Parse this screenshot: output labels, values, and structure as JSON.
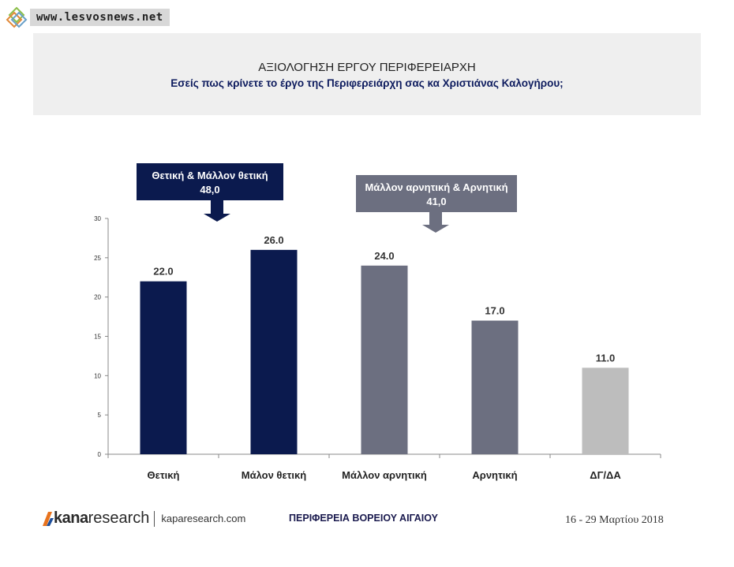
{
  "site": {
    "url": "www.lesvosnews.net"
  },
  "header": {
    "title": "ΑΞΙΟΛΟΓΗΣΗ ΕΡΓΟΥ ΠΕΡΙΦΕΡΕΙΑΡΧΗ",
    "subtitle": "Εσείς πως κρίνετε το έργο της Περιφερειάρχη σας κα Χριστιάνας Καλογήρου;"
  },
  "chart_data": {
    "type": "bar",
    "categories": [
      "Θετική",
      "Μάλον θετική",
      "Μάλλον αρνητική",
      "Αρνητική",
      "ΔΓ/ΔΑ"
    ],
    "values": [
      22.0,
      26.0,
      24.0,
      17.0,
      11.0
    ],
    "value_labels": [
      "22.0",
      "26.0",
      "24.0",
      "17.0",
      "11.0"
    ],
    "colors": [
      "#0b1a4e",
      "#0b1a4e",
      "#6c6f80",
      "#6c6f80",
      "#bdbdbd"
    ],
    "ylim": [
      0,
      30
    ],
    "yticks": [
      0,
      5,
      10,
      15,
      20,
      25,
      30
    ],
    "grid": false,
    "annotations": [
      {
        "line1": "Θετική & Μάλλον θετική",
        "line2": "48,0",
        "color": "#0b1a4e"
      },
      {
        "line1": "Μάλλον αρνητική & Αρνητική",
        "line2": "41,0",
        "color": "#6c6f80"
      }
    ]
  },
  "footer": {
    "logo_kana": "kana",
    "logo_research": "research",
    "website": "kaparesearch.com",
    "region": "ΠΕΡΙΦΕΡΕΙΑ ΒΟΡΕΙΟΥ ΑΙΓΑΙΟΥ",
    "dates": "16 - 29 Μαρτίου 2018"
  }
}
